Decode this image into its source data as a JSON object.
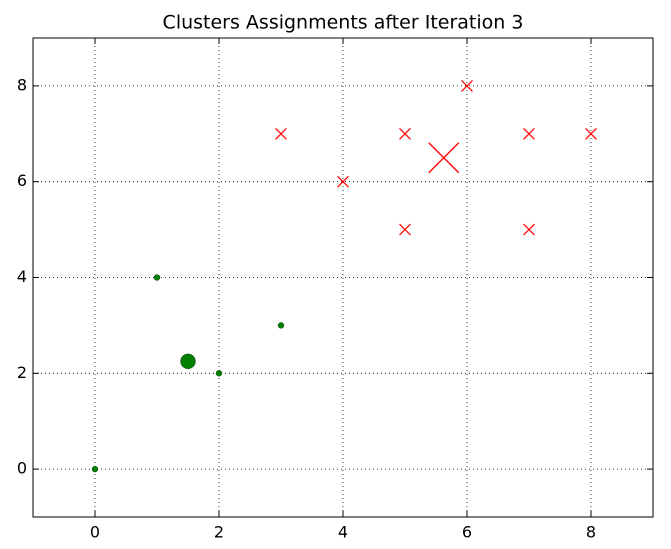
{
  "chart_data": {
    "type": "scatter",
    "title": "Clusters Assignments after Iteration 3",
    "xlim": [
      -1,
      9
    ],
    "ylim": [
      -1,
      9
    ],
    "xticks": [
      0,
      2,
      4,
      6,
      8
    ],
    "yticks": [
      0,
      2,
      4,
      6,
      8
    ],
    "grid": true,
    "series": [
      {
        "color": "#008000",
        "marker": "o",
        "marker_size": "small",
        "x": [
          0,
          1,
          2,
          3
        ],
        "y": [
          0,
          4,
          2,
          3
        ]
      },
      {
        "color": "#ff0000",
        "marker": "x",
        "marker_size": "small",
        "x": [
          3,
          4,
          5,
          5,
          6,
          7,
          7,
          8
        ],
        "y": [
          7,
          6,
          7,
          5,
          8,
          7,
          5,
          7
        ]
      },
      {
        "color": "#008000",
        "marker": "o",
        "marker_size": "large",
        "x": [
          1.5
        ],
        "y": [
          2.25
        ]
      },
      {
        "color": "#ff0000",
        "marker": "x",
        "marker_size": "large",
        "x": [
          5.625
        ],
        "y": [
          6.5
        ]
      }
    ]
  }
}
